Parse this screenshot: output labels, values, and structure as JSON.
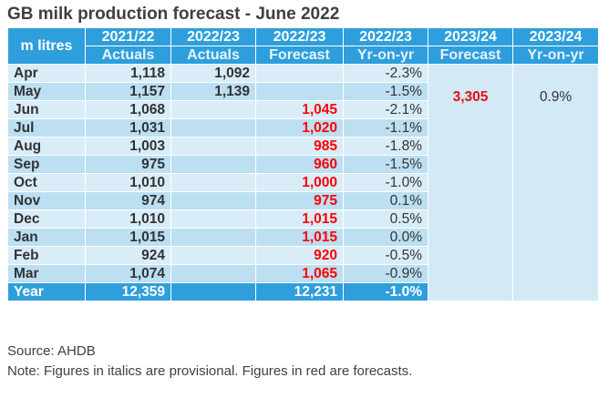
{
  "title": "GB milk production forecast - June 2022",
  "corner_label": "m litres",
  "header_years": [
    "2021/22",
    "2022/23",
    "2022/23",
    "2022/23",
    "2023/24",
    "2023/24"
  ],
  "header_types": [
    "Actuals",
    "Actuals",
    "Forecast",
    "Yr-on-yr",
    "Forecast",
    "Yr-on-yr"
  ],
  "rows": [
    {
      "month": "Apr",
      "a2122": "1,118",
      "a2223": "1,092",
      "f2223": "",
      "yoy": "-2.3%"
    },
    {
      "month": "May",
      "a2122": "1,157",
      "a2223": "1,139",
      "f2223": "",
      "yoy": "-1.5%"
    },
    {
      "month": "Jun",
      "a2122": "1,068",
      "a2223": "",
      "f2223": "1,045",
      "yoy": "-2.1%"
    },
    {
      "month": "Jul",
      "a2122": "1,031",
      "a2223": "",
      "f2223": "1,020",
      "yoy": "-1.1%"
    },
    {
      "month": "Aug",
      "a2122": "1,003",
      "a2223": "",
      "f2223": "985",
      "yoy": "-1.8%"
    },
    {
      "month": "Sep",
      "a2122": "975",
      "a2223": "",
      "f2223": "960",
      "yoy": "-1.5%"
    },
    {
      "month": "Oct",
      "a2122": "1,010",
      "a2223": "",
      "f2223": "1,000",
      "yoy": "-1.0%"
    },
    {
      "month": "Nov",
      "a2122": "974",
      "a2223": "",
      "f2223": "975",
      "yoy": "0.1%"
    },
    {
      "month": "Dec",
      "a2122": "1,010",
      "a2223": "",
      "f2223": "1,015",
      "yoy": "0.5%"
    },
    {
      "month": "Jan",
      "a2122": "1,015",
      "a2223": "",
      "f2223": "1,015",
      "yoy": "0.0%"
    },
    {
      "month": "Feb",
      "a2122": "924",
      "a2223": "",
      "f2223": "920",
      "yoy": "-0.5%"
    },
    {
      "month": "Mar",
      "a2122": "1,074",
      "a2223": "",
      "f2223": "1,065",
      "yoy": "-0.9%"
    }
  ],
  "year_row": {
    "label": "Year",
    "a2122": "12,359",
    "a2223": "",
    "f2223": "12,231",
    "yoy": "-1.0%"
  },
  "forecast_2324": {
    "value": "3,305",
    "yoy": "0.9%"
  },
  "source": "Source: AHDB",
  "note": "Note: Figures in italics are provisional. Figures in red are forecasts.",
  "colors": {
    "header": "#2e9fdc",
    "row_light": "#d9edf8",
    "row_dark": "#bcdff2",
    "forecast_text": "#ff0000"
  }
}
